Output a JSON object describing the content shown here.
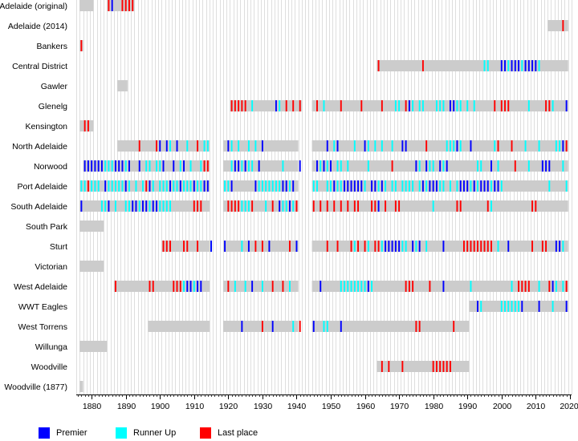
{
  "chart_data": {
    "type": "timeline",
    "x_range": [
      1876,
      2020
    ],
    "x_ticks": [
      1880,
      1890,
      1900,
      1910,
      1920,
      1930,
      1940,
      1950,
      1960,
      1970,
      1980,
      1990,
      2000,
      2010,
      2020
    ],
    "x_tick_labels": [
      "1880",
      "1890",
      "1900",
      "1910",
      "1920",
      "1930",
      "1940",
      "1950",
      "1960",
      "1970",
      "1980",
      "1990",
      "2000",
      "2010",
      "2020"
    ],
    "grid": "vertical yearly lines",
    "colors": {
      "participation": "#cccccc",
      "premier": "#0000ff",
      "runner_up": "#00ffff",
      "last_place": "#ff0000",
      "grid": "#c8c8c8"
    },
    "legend": [
      {
        "key": "premier",
        "label": "Premier",
        "color": "#0000ff"
      },
      {
        "key": "runner_up",
        "label": "Runner Up",
        "color": "#00ffff"
      },
      {
        "key": "last_place",
        "label": "Last place",
        "color": "#ff0000"
      }
    ],
    "teams": [
      {
        "name": "Adelaide (original)",
        "periods": [
          [
            1877,
            1880
          ],
          [
            1885,
            1892
          ]
        ],
        "premier": [
          1886
        ],
        "runner_up": [],
        "last": [
          1885,
          1889,
          1890,
          1891,
          1892
        ]
      },
      {
        "name": "Adelaide (2014)",
        "periods": [
          [
            2014,
            2019
          ]
        ],
        "premier": [],
        "runner_up": [],
        "last": [
          2018
        ]
      },
      {
        "name": "Bankers",
        "periods": [
          [
            1877,
            1877
          ]
        ],
        "premier": [],
        "runner_up": [],
        "last": [
          1877
        ]
      },
      {
        "name": "Central District",
        "periods": [
          [
            1964,
            2019
          ]
        ],
        "premier": [
          2000,
          2001,
          2003,
          2004,
          2005,
          2007,
          2008,
          2009,
          2010
        ],
        "runner_up": [
          1995,
          1996,
          2002,
          2006,
          2011
        ],
        "last": [
          1964,
          1977
        ]
      },
      {
        "name": "Gawler",
        "periods": [
          [
            1888,
            1890
          ]
        ],
        "premier": [],
        "runner_up": [],
        "last": []
      },
      {
        "name": "Glenelg",
        "periods": [
          [
            1921,
            1941
          ],
          [
            1945,
            2019
          ]
        ],
        "premier": [
          1934,
          1973,
          1985,
          1986,
          2019
        ],
        "runner_up": [
          1927,
          1935,
          1948,
          1969,
          1970,
          1974,
          1976,
          1977,
          1981,
          1982,
          1983,
          1987,
          1988,
          1990,
          1992,
          2008,
          2015
        ],
        "last": [
          1921,
          1922,
          1923,
          1924,
          1925,
          1937,
          1939,
          1941,
          1946,
          1953,
          1959,
          1965,
          1972,
          1998,
          2000,
          2001,
          2002,
          2013,
          2014
        ]
      },
      {
        "name": "Kensington",
        "periods": [
          [
            1877,
            1880
          ]
        ],
        "premier": [],
        "runner_up": [],
        "last": [
          1878,
          1879
        ]
      },
      {
        "name": "North Adelaide",
        "periods": [
          [
            1888,
            1914
          ],
          [
            1919,
            1940
          ],
          [
            1945,
            2019
          ]
        ],
        "premier": [
          1900,
          1902,
          1905,
          1920,
          1930,
          1949,
          1952,
          1960,
          1971,
          1972,
          1987,
          1991,
          2018
        ],
        "runner_up": [
          1903,
          1908,
          1913,
          1914,
          1921,
          1923,
          1926,
          1928,
          1951,
          1957,
          1961,
          1963,
          1965,
          1968,
          1984,
          1985,
          1986,
          1988,
          1998,
          2007,
          2011,
          2016,
          2017
        ],
        "last": [
          1894,
          1899,
          1911,
          1978,
          1999,
          2003,
          2019
        ]
      },
      {
        "name": "Norwood",
        "periods": [
          [
            1878,
            1914
          ],
          [
            1919,
            1940
          ],
          [
            1945,
            2019
          ]
        ],
        "premier": [
          1878,
          1879,
          1880,
          1881,
          1882,
          1883,
          1887,
          1888,
          1889,
          1891,
          1894,
          1901,
          1904,
          1907,
          1922,
          1923,
          1925,
          1929,
          1941,
          1946,
          1948,
          1950,
          1975,
          1978,
          1982,
          1984,
          1997,
          2012,
          2013,
          2014
        ],
        "runner_up": [
          1884,
          1885,
          1886,
          1890,
          1896,
          1897,
          1899,
          1900,
          1906,
          1909,
          1912,
          1921,
          1924,
          1926,
          1927,
          1936,
          1947,
          1949,
          1952,
          1953,
          1955,
          1961,
          1976,
          1979,
          1980,
          1983,
          1993,
          1994,
          1999,
          2008,
          2018
        ],
        "last": [
          1913,
          1914,
          1968,
          2004
        ]
      },
      {
        "name": "Port Adelaide",
        "periods": [
          [
            1877,
            1914
          ],
          [
            1919,
            1940
          ],
          [
            1945,
            2019
          ]
        ],
        "premier": [
          1884,
          1890,
          1897,
          1903,
          1906,
          1910,
          1913,
          1914,
          1921,
          1928,
          1936,
          1937,
          1939,
          1951,
          1954,
          1955,
          1956,
          1957,
          1958,
          1959,
          1962,
          1963,
          1965,
          1977,
          1979,
          1980,
          1981,
          1988,
          1989,
          1990,
          1992,
          1994,
          1995,
          1996,
          1998,
          1999
        ],
        "runner_up": [
          1877,
          1878,
          1880,
          1881,
          1882,
          1885,
          1886,
          1887,
          1888,
          1889,
          1891,
          1893,
          1895,
          1898,
          1900,
          1901,
          1902,
          1904,
          1905,
          1907,
          1908,
          1909,
          1911,
          1912,
          1919,
          1920,
          1929,
          1930,
          1931,
          1932,
          1933,
          1934,
          1935,
          1938,
          1945,
          1946,
          1949,
          1950,
          1952,
          1953,
          1960,
          1964,
          1966,
          1968,
          1969,
          1971,
          1972,
          1973,
          1974,
          1976,
          1978,
          1982,
          1983,
          1985,
          1987,
          1991,
          1993,
          1997,
          2000,
          2014,
          2019
        ],
        "last": [
          1879,
          1896
        ]
      },
      {
        "name": "South Adelaide",
        "periods": [
          [
            1877,
            1914
          ],
          [
            1919,
            1940
          ],
          [
            1945,
            2019
          ]
        ],
        "premier": [
          1877,
          1885,
          1892,
          1893,
          1895,
          1896,
          1898,
          1899,
          1935,
          1938,
          1964
        ],
        "runner_up": [
          1883,
          1884,
          1887,
          1890,
          1891,
          1894,
          1897,
          1900,
          1901,
          1902,
          1903,
          1924,
          1925,
          1926,
          1931,
          1936,
          1937,
          1939,
          1980,
          1997
        ],
        "last": [
          1910,
          1911,
          1912,
          1920,
          1921,
          1922,
          1923,
          1927,
          1933,
          1940,
          1945,
          1947,
          1949,
          1951,
          1953,
          1955,
          1957,
          1958,
          1962,
          1963,
          1966,
          1969,
          1970,
          1987,
          1988,
          1996,
          2009,
          2010
        ]
      },
      {
        "name": "South Park",
        "periods": [
          [
            1877,
            1883
          ]
        ],
        "premier": [],
        "runner_up": [],
        "last": []
      },
      {
        "name": "Sturt",
        "periods": [
          [
            1901,
            1914
          ],
          [
            1919,
            1940
          ],
          [
            1945,
            2019
          ]
        ],
        "premier": [
          1915,
          1919,
          1926,
          1932,
          1940,
          1966,
          1967,
          1968,
          1969,
          1970,
          1974,
          1976,
          1983,
          2002,
          2016,
          2017
        ],
        "runner_up": [
          1915,
          1924,
          1940,
          1957,
          1961,
          1965,
          1971,
          1972,
          1975,
          1978,
          1991,
          1995,
          1999,
          2018
        ],
        "last": [
          1901,
          1902,
          1903,
          1907,
          1908,
          1911,
          1928,
          1930,
          1938,
          1949,
          1952,
          1956,
          1958,
          1960,
          1963,
          1964,
          1989,
          1990,
          1991,
          1992,
          1993,
          1994,
          1995,
          1996,
          1997,
          2009,
          2012,
          2013
        ]
      },
      {
        "name": "Victorian",
        "periods": [
          [
            1877,
            1883
          ]
        ],
        "premier": [],
        "runner_up": [],
        "last": []
      },
      {
        "name": "West Adelaide",
        "periods": [
          [
            1887,
            1914
          ],
          [
            1919,
            1940
          ],
          [
            1945,
            2019
          ]
        ],
        "premier": [
          1908,
          1909,
          1911,
          1912,
          1927,
          1947,
          1961,
          1983,
          2015
        ],
        "runner_up": [
          1907,
          1910,
          1922,
          1925,
          1930,
          1938,
          1953,
          1954,
          1955,
          1956,
          1957,
          1958,
          1959,
          1960,
          1962,
          1991,
          2003,
          2011,
          2016,
          2018
        ],
        "last": [
          1887,
          1897,
          1898,
          1904,
          1905,
          1906,
          1920,
          1933,
          1936,
          1972,
          1973,
          1974,
          1979,
          2005,
          2006,
          2007,
          2008,
          2014,
          2019
        ]
      },
      {
        "name": "WWT Eagles",
        "periods": [
          [
            1991,
            2019
          ]
        ],
        "premier": [
          1993,
          2006,
          2011,
          2019
        ],
        "runner_up": [
          1994,
          2000,
          2001,
          2002,
          2003,
          2004,
          2005,
          2015
        ],
        "last": []
      },
      {
        "name": "West Torrens",
        "periods": [
          [
            1897,
            1914
          ],
          [
            1919,
            1940
          ],
          [
            1945,
            1990
          ]
        ],
        "premier": [
          1924,
          1933,
          1945,
          1953
        ],
        "runner_up": [
          1939,
          1948,
          1949
        ],
        "last": [
          1930,
          1941,
          1975,
          1976,
          1986
        ]
      },
      {
        "name": "Willunga",
        "periods": [
          [
            1877,
            1884
          ]
        ],
        "premier": [],
        "runner_up": [],
        "last": []
      },
      {
        "name": "Woodville",
        "periods": [
          [
            1964,
            1990
          ]
        ],
        "premier": [],
        "runner_up": [],
        "last": [
          1965,
          1967,
          1971,
          1980,
          1981,
          1982,
          1983,
          1984,
          1985
        ]
      },
      {
        "name": "Woodville (1877)",
        "periods": [
          [
            1877,
            1877
          ]
        ],
        "premier": [],
        "runner_up": [],
        "last": []
      }
    ]
  }
}
